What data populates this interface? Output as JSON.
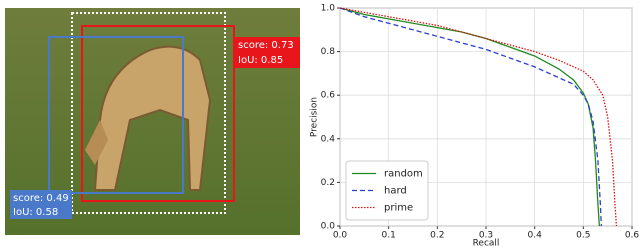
{
  "detection_panel": {
    "boxes": [
      {
        "color": "#e8151b",
        "lines": [
          "score: 0.73",
          "IoU: 0.85"
        ]
      },
      {
        "color": "#4a79c9",
        "lines": [
          "score: 0.49",
          "IoU: 0.58"
        ]
      }
    ]
  },
  "chart_data": {
    "type": "line",
    "xlabel": "Recall",
    "ylabel": "Precision",
    "xlim": [
      0,
      0.6
    ],
    "ylim": [
      0,
      1
    ],
    "xticks": [
      {
        "value": 0,
        "label": "0.0"
      },
      {
        "value": 0.1,
        "label": "0.1"
      },
      {
        "value": 0.2,
        "label": "0.2"
      },
      {
        "value": 0.3,
        "label": "0.3"
      },
      {
        "value": 0.4,
        "label": "0.4"
      },
      {
        "value": 0.5,
        "label": "0.5"
      },
      {
        "value": 0.6,
        "label": "0.6"
      }
    ],
    "yticks": [
      {
        "value": 0,
        "label": "0.0"
      },
      {
        "value": 0.2,
        "label": "0.2"
      },
      {
        "value": 0.4,
        "label": "0.4"
      },
      {
        "value": 0.6,
        "label": "0.6"
      },
      {
        "value": 0.8,
        "label": "0.8"
      },
      {
        "value": 1,
        "label": "1.0"
      }
    ],
    "grid": true,
    "legend": "lower left",
    "series": [
      {
        "name": "random",
        "color": "#1f8a1f",
        "dash": "none",
        "x": [
          0,
          0.05,
          0.1,
          0.15,
          0.2,
          0.25,
          0.3,
          0.35,
          0.4,
          0.45,
          0.48,
          0.5,
          0.51,
          0.52,
          0.525,
          0.53,
          0.533
        ],
        "values": [
          1.0,
          0.97,
          0.95,
          0.93,
          0.91,
          0.89,
          0.86,
          0.82,
          0.78,
          0.72,
          0.67,
          0.61,
          0.56,
          0.45,
          0.3,
          0.1,
          0.0
        ]
      },
      {
        "name": "hard",
        "color": "#2b3fd0",
        "dash": "5,3",
        "x": [
          0,
          0.05,
          0.1,
          0.15,
          0.2,
          0.25,
          0.3,
          0.35,
          0.4,
          0.45,
          0.48,
          0.5,
          0.51,
          0.52,
          0.53,
          0.535,
          0.537
        ],
        "values": [
          1.0,
          0.96,
          0.93,
          0.9,
          0.87,
          0.84,
          0.81,
          0.77,
          0.73,
          0.68,
          0.65,
          0.6,
          0.56,
          0.48,
          0.3,
          0.1,
          0.0
        ]
      },
      {
        "name": "prime",
        "color": "#e01010",
        "dash": "1.5,1.5",
        "x": [
          0,
          0.05,
          0.1,
          0.15,
          0.2,
          0.25,
          0.3,
          0.35,
          0.4,
          0.45,
          0.5,
          0.52,
          0.54,
          0.55,
          0.56,
          0.565,
          0.568
        ],
        "values": [
          1.0,
          0.98,
          0.96,
          0.94,
          0.92,
          0.89,
          0.86,
          0.83,
          0.8,
          0.76,
          0.71,
          0.67,
          0.6,
          0.5,
          0.3,
          0.1,
          0.0
        ]
      }
    ]
  }
}
